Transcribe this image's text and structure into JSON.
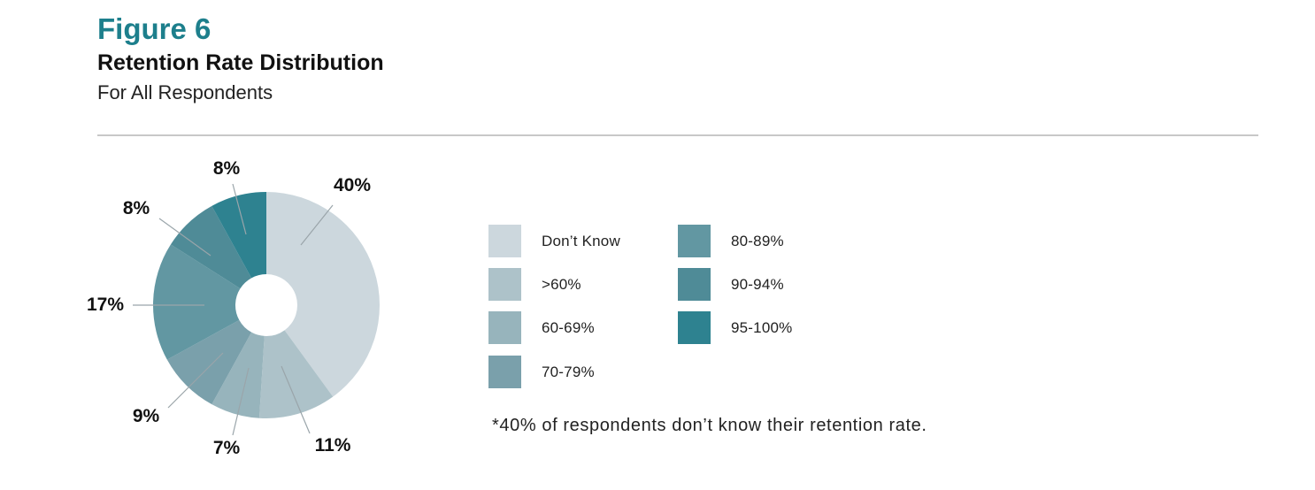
{
  "figure": {
    "label": "Figure 6",
    "title": "Retention Rate Distribution",
    "subtitle": "For All Respondents",
    "footnote": "*40% of respondents don’t know their retention rate."
  },
  "chart_data": {
    "type": "pie",
    "donut": true,
    "title": "Retention Rate Distribution",
    "subtitle": "For All Respondents",
    "slices": [
      {
        "name": "Don’t Know",
        "value": 40,
        "label": "40%",
        "color": "#ccd7dd"
      },
      {
        "name": ">60%",
        "value": 11,
        "label": "11%",
        "color": "#adc2c9"
      },
      {
        "name": "60-69%",
        "value": 7,
        "label": "7%",
        "color": "#97b4bc"
      },
      {
        "name": "70-79%",
        "value": 9,
        "label": "9%",
        "color": "#7aa0ab"
      },
      {
        "name": "80-89%",
        "value": 17,
        "label": "17%",
        "color": "#6297a2"
      },
      {
        "name": "90-94%",
        "value": 8,
        "label": "8%",
        "color": "#4f8b97"
      },
      {
        "name": "95-100%",
        "value": 8,
        "label": "8%",
        "color": "#2e8290"
      }
    ],
    "legend_placement": "right"
  }
}
